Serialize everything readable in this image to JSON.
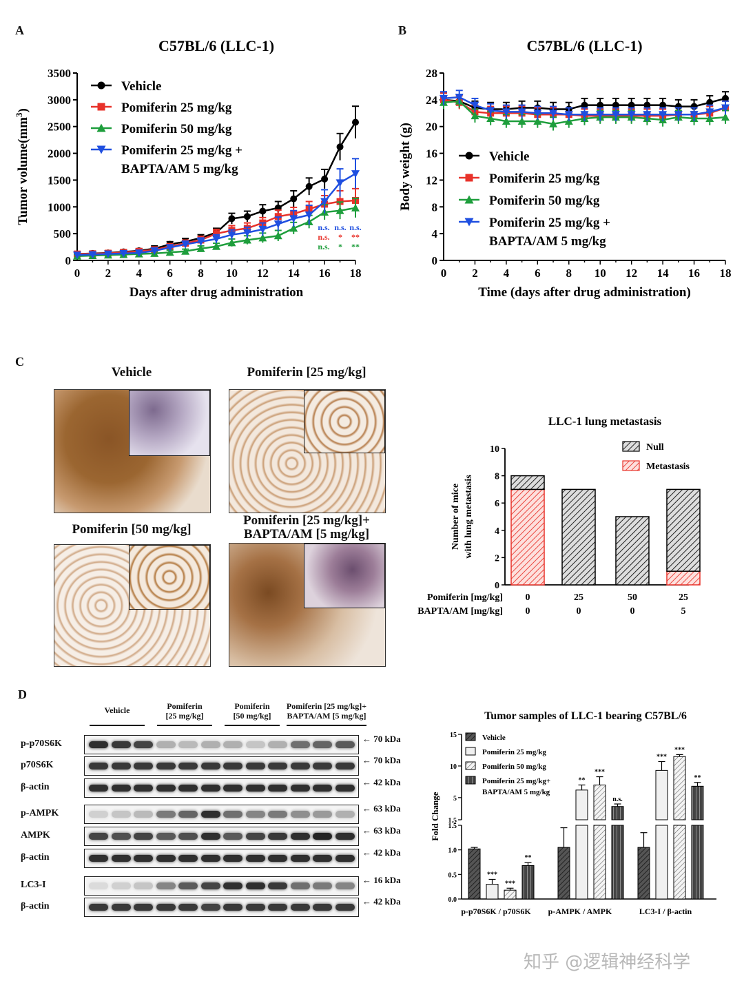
{
  "panels": {
    "a": "A",
    "b": "B",
    "c": "C",
    "d": "D"
  },
  "chart_a": {
    "title": "C57BL/6 (LLC-1)",
    "xlabel": "Days after drug administration",
    "ylabel": "Tumor volume(mm",
    "ylabel_sup": "3",
    "ylabel_end": ")",
    "x": [
      0,
      1,
      2,
      3,
      4,
      5,
      6,
      7,
      8,
      9,
      10,
      11,
      12,
      13,
      14,
      15,
      16,
      17,
      18
    ],
    "xticks": [
      "0",
      "2",
      "4",
      "6",
      "8",
      "10",
      "12",
      "14",
      "16",
      "18"
    ],
    "yticks": [
      "0",
      "500",
      "1000",
      "1500",
      "2000",
      "2500",
      "3000",
      "3500"
    ],
    "ylim": [
      0,
      3500
    ],
    "series": [
      {
        "name": "Vehicle",
        "color": "#000000",
        "marker": "circle",
        "values": [
          120,
          130,
          140,
          160,
          180,
          220,
          300,
          350,
          420,
          520,
          780,
          820,
          920,
          980,
          1150,
          1380,
          1520,
          2120,
          2580
        ],
        "err": [
          40,
          40,
          40,
          40,
          40,
          50,
          50,
          60,
          60,
          80,
          100,
          100,
          120,
          120,
          150,
          160,
          180,
          250,
          300
        ]
      },
      {
        "name": "Pomiferin 25 mg/kg",
        "color": "#e8322a",
        "marker": "square",
        "values": [
          120,
          125,
          135,
          150,
          170,
          200,
          260,
          320,
          380,
          500,
          560,
          600,
          700,
          820,
          870,
          960,
          1050,
          1100,
          1120
        ],
        "err": [
          40,
          40,
          40,
          40,
          40,
          50,
          50,
          60,
          70,
          80,
          90,
          100,
          100,
          120,
          120,
          140,
          160,
          200,
          220
        ]
      },
      {
        "name": "Pomiferin 50 mg/kg",
        "color": "#1e9e3c",
        "marker": "triangle",
        "values": [
          80,
          90,
          100,
          110,
          120,
          130,
          150,
          170,
          220,
          260,
          330,
          380,
          420,
          460,
          600,
          720,
          900,
          930,
          980
        ],
        "err": [
          30,
          30,
          30,
          30,
          30,
          40,
          40,
          40,
          50,
          60,
          70,
          80,
          90,
          100,
          110,
          120,
          140,
          160,
          180
        ]
      },
      {
        "name": "Pomiferin 25 mg/kg + BAPTA/AM 5 mg/kg",
        "legend1": "Pomiferin 25 mg/kg +",
        "legend2": "BAPTA/AM 5 mg/kg",
        "color": "#1f4fe0",
        "marker": "invtriangle",
        "values": [
          100,
          110,
          120,
          130,
          140,
          180,
          240,
          300,
          350,
          400,
          480,
          520,
          580,
          680,
          780,
          850,
          1100,
          1450,
          1620
        ],
        "err": [
          40,
          40,
          40,
          40,
          40,
          50,
          50,
          60,
          70,
          80,
          90,
          100,
          120,
          130,
          150,
          180,
          220,
          260,
          280
        ]
      }
    ],
    "sig": {
      "blue": [
        "n.s.",
        "n.s.",
        "n.s."
      ],
      "red": [
        "n.s.",
        "*",
        "**"
      ],
      "green": [
        "n.s.",
        "*",
        "**"
      ]
    }
  },
  "chart_b": {
    "title": "C57BL/6 (LLC-1)",
    "xlabel": "Time (days after drug administration)",
    "ylabel": "Body weight (g)",
    "x": [
      0,
      1,
      2,
      3,
      4,
      5,
      6,
      7,
      8,
      9,
      10,
      11,
      12,
      13,
      14,
      15,
      16,
      17,
      18
    ],
    "xticks": [
      "0",
      "2",
      "4",
      "6",
      "8",
      "10",
      "12",
      "14",
      "16",
      "18"
    ],
    "yticks": [
      "0",
      "4",
      "8",
      "12",
      "16",
      "20",
      "24",
      "28"
    ],
    "ylim": [
      0,
      28
    ],
    "series": [
      {
        "name": "Vehicle",
        "color": "#000000",
        "marker": "circle",
        "values": [
          24,
          23.8,
          22.8,
          22.6,
          22.6,
          22.8,
          22.8,
          22.6,
          22.6,
          23.2,
          23.2,
          23.2,
          23.2,
          23.2,
          23.2,
          23.0,
          23.0,
          23.6,
          24.2
        ],
        "err": [
          1,
          1,
          1,
          1,
          1,
          1,
          1,
          1,
          1,
          1,
          1,
          1,
          1,
          1,
          1,
          1,
          1,
          1,
          1
        ]
      },
      {
        "name": "Pomiferin 25 mg/kg",
        "color": "#e8322a",
        "marker": "square",
        "values": [
          24,
          23.6,
          22.2,
          22.0,
          22.0,
          22.0,
          21.8,
          21.8,
          21.8,
          21.6,
          21.6,
          21.6,
          21.6,
          21.6,
          21.6,
          21.8,
          21.8,
          22.0,
          22.8
        ],
        "err": [
          1,
          1,
          1,
          1,
          1,
          1,
          1,
          1,
          1,
          1,
          1,
          1,
          1,
          1,
          1,
          1,
          1,
          1,
          1
        ]
      },
      {
        "name": "Pomiferin 50 mg/kg",
        "color": "#1e9e3c",
        "marker": "triangle",
        "values": [
          23.6,
          23.8,
          21.6,
          21.2,
          20.8,
          20.8,
          20.8,
          20.4,
          20.8,
          21.2,
          21.4,
          21.4,
          21.4,
          21.2,
          21.0,
          21.4,
          21.2,
          21.2,
          21.4
        ],
        "err": [
          1,
          1,
          1,
          1,
          1,
          1,
          1,
          1,
          1,
          1,
          1,
          1,
          1,
          1,
          1,
          1,
          1,
          1,
          1
        ]
      },
      {
        "name": "Pomiferin 25 mg/kg + BAPTA/AM 5 mg/kg",
        "legend1": "Pomiferin 25 mg/kg +",
        "legend2": "BAPTA/AM 5 mg/kg",
        "color": "#1f4fe0",
        "marker": "invtriangle",
        "values": [
          24.2,
          24.4,
          23.2,
          22.4,
          22.2,
          22.2,
          22.0,
          22.0,
          21.8,
          21.8,
          21.8,
          21.8,
          21.8,
          21.8,
          21.8,
          21.8,
          21.8,
          22.2,
          22.8
        ],
        "err": [
          1,
          1,
          1,
          1,
          1,
          1,
          1,
          1,
          1,
          1,
          1,
          1,
          1,
          1,
          1,
          1,
          1,
          1,
          1
        ]
      }
    ]
  },
  "micrographs": {
    "vehicle": "Vehicle",
    "p25": "Pomiferin [25 mg/kg]",
    "p50": "Pomiferin [50 mg/kg]",
    "pb1": "Pomiferin [25 mg/kg]+",
    "pb2": "BAPTA/AM [5 mg/kg]"
  },
  "chart_c": {
    "type": "bar",
    "title": "LLC-1 lung metastasis",
    "ylabel1": "Number of mice",
    "ylabel2": "with lung metastasis",
    "yticks": [
      "0",
      "2",
      "4",
      "6",
      "8",
      "10"
    ],
    "ylim": [
      0,
      10
    ],
    "legend_null": "Null",
    "legend_meta": "Metastasis",
    "row1_label": "Pomiferin [mg/kg]",
    "row2_label": "BAPTA/AM [mg/kg]",
    "pomiferin": [
      "0",
      "25",
      "50",
      "25"
    ],
    "bapta": [
      "0",
      "0",
      "0",
      "5"
    ],
    "null_values": [
      1,
      7,
      5,
      6
    ],
    "metastasis_values": [
      7,
      0,
      0,
      1
    ]
  },
  "blot": {
    "groups": [
      "Vehicle",
      "Pomiferin\n[25 mg/kg]",
      "Pomiferin\n[50 mg/kg]",
      "Pomiferin [25 mg/kg]+\nBAPTA/AM [5 mg/kg]"
    ],
    "rows": [
      {
        "label": "p-p70S6K",
        "kda": "70 kDa",
        "intensity": [
          0.9,
          0.85,
          0.8,
          0.3,
          0.25,
          0.3,
          0.3,
          0.2,
          0.3,
          0.6,
          0.65,
          0.7
        ]
      },
      {
        "label": "p70S6K",
        "kda": "70 kDa",
        "intensity": [
          0.85,
          0.85,
          0.85,
          0.85,
          0.85,
          0.85,
          0.85,
          0.85,
          0.85,
          0.85,
          0.85,
          0.85
        ]
      },
      {
        "label": "β-actin",
        "kda": "42 kDa",
        "intensity": [
          0.9,
          0.9,
          0.9,
          0.9,
          0.9,
          0.9,
          0.9,
          0.9,
          0.9,
          0.9,
          0.9,
          0.9
        ]
      },
      {
        "label": "p-AMPK",
        "kda": "63 kDa",
        "intensity": [
          0.15,
          0.2,
          0.25,
          0.55,
          0.65,
          0.9,
          0.6,
          0.5,
          0.55,
          0.45,
          0.4,
          0.3
        ]
      },
      {
        "label": "AMPK",
        "kda": "63 kDa",
        "intensity": [
          0.8,
          0.75,
          0.8,
          0.7,
          0.75,
          0.9,
          0.7,
          0.8,
          0.85,
          0.9,
          0.95,
          0.9
        ]
      },
      {
        "label": "β-actin",
        "kda": "42 kDa",
        "intensity": [
          0.9,
          0.9,
          0.9,
          0.9,
          0.9,
          0.9,
          0.9,
          0.9,
          0.9,
          0.9,
          0.9,
          0.9
        ]
      },
      {
        "label": "LC3-I",
        "kda": "16 kDa",
        "intensity": [
          0.1,
          0.15,
          0.2,
          0.5,
          0.7,
          0.8,
          0.9,
          0.9,
          0.85,
          0.6,
          0.55,
          0.5
        ]
      },
      {
        "label": "β-actin",
        "kda": "42 kDa",
        "intensity": [
          0.85,
          0.85,
          0.85,
          0.85,
          0.85,
          0.8,
          0.85,
          0.85,
          0.85,
          0.85,
          0.85,
          0.85
        ]
      }
    ]
  },
  "chart_d": {
    "type": "bar",
    "title": "Tumor samples of LLC-1 bearing C57BL/6",
    "ylabel": "Fold Change",
    "categories": [
      "p-p70S6K / p70S6K",
      "p-AMPK / AMPK",
      "LC3-I / β-actin"
    ],
    "legend": [
      "Vehicle",
      "Pomiferin 25 mg/kg",
      "Pomiferin 50 mg/kg",
      "Pomiferin 25 mg/kg+",
      "BAPTA/AM 5 mg/kg"
    ],
    "yticks_low": [
      "0.0",
      "0.5",
      "1.0",
      "1.5"
    ],
    "yticks_high": [
      "1.5",
      "5",
      "10",
      "15"
    ],
    "series": [
      {
        "name": "Vehicle",
        "values": [
          1.02,
          1.05,
          1.05
        ],
        "err": [
          0.03,
          0.4,
          0.3
        ]
      },
      {
        "name": "Pomiferin 25 mg/kg",
        "values": [
          0.3,
          6.2,
          9.3
        ],
        "err": [
          0.1,
          0.8,
          1.4
        ]
      },
      {
        "name": "Pomiferin 50 mg/kg",
        "values": [
          0.18,
          7.0,
          11.5
        ],
        "err": [
          0.04,
          1.3,
          0.3
        ]
      },
      {
        "name": "Pomiferin 25 mg/kg+ BAPTA/AM 5 mg/kg",
        "values": [
          0.68,
          3.6,
          6.8
        ],
        "err": [
          0.06,
          0.4,
          0.6
        ]
      }
    ],
    "sig": [
      [
        "",
        "***",
        "***",
        "**"
      ],
      [
        "",
        "**",
        "***",
        "n.s."
      ],
      [
        "",
        "***",
        "***",
        "**"
      ]
    ]
  },
  "watermark": "知乎 @逻辑神经科学"
}
